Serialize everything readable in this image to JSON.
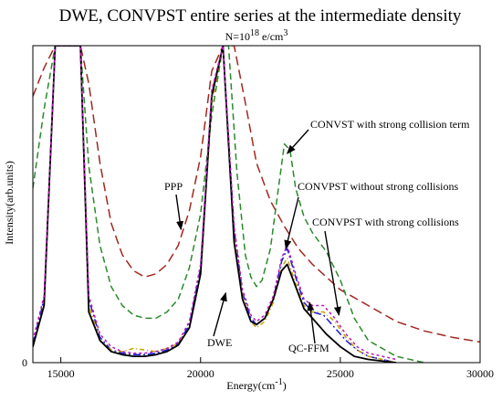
{
  "chart_data": {
    "type": "line",
    "title": "DWE, CONVPST entire series at the intermediate density",
    "subtitle_base": "N=10",
    "subtitle_exp": "18",
    "subtitle_unit": " e/cm",
    "subtitle_unit_exp": "3",
    "xlabel": "Energy(cm",
    "xlabel_exp": "-1",
    "xlabel_close": ")",
    "ylabel": "Intensity(arb.units)",
    "xlim": [
      14000,
      30000
    ],
    "ylim": [
      0,
      1
    ],
    "y_ticks": [
      0
    ],
    "x_ticks": [
      15000,
      20000,
      25000,
      30000
    ],
    "grid": false,
    "legend": "none",
    "series": [
      {
        "name": "PPP",
        "color": "#a0281e",
        "dash": "10,5",
        "x": [
          14000,
          14400,
          14800,
          15000,
          15300,
          15700,
          16000,
          16400,
          16800,
          17200,
          17600,
          18000,
          18400,
          18800,
          19200,
          19600,
          20000,
          20400,
          20800,
          21200,
          21600,
          22000,
          22500,
          23000,
          23500,
          24000,
          25000,
          26000,
          27000,
          28000,
          29000,
          30000
        ],
        "y": [
          0.84,
          0.93,
          1.0,
          1.0,
          1.0,
          1.0,
          0.88,
          0.63,
          0.44,
          0.34,
          0.29,
          0.27,
          0.28,
          0.31,
          0.37,
          0.48,
          0.65,
          0.92,
          1.0,
          1.0,
          0.82,
          0.63,
          0.51,
          0.43,
          0.36,
          0.31,
          0.23,
          0.18,
          0.13,
          0.1,
          0.08,
          0.065
        ]
      },
      {
        "name": "CONVST with strong collision term",
        "color": "#2a8a2a",
        "dash": "7,4",
        "x": [
          14000,
          14400,
          14800,
          15000,
          15300,
          15700,
          16000,
          16400,
          16800,
          17200,
          17600,
          18000,
          18400,
          18800,
          19200,
          19600,
          20000,
          20400,
          20800,
          21000,
          21300,
          21600,
          21800,
          22000,
          22200,
          22500,
          22800,
          23000,
          23200,
          23400,
          23700,
          24000,
          24500,
          25000,
          25500,
          26000,
          27000,
          28000
        ],
        "y": [
          0.55,
          0.8,
          1.0,
          1.0,
          1.0,
          1.0,
          0.62,
          0.37,
          0.24,
          0.18,
          0.15,
          0.14,
          0.14,
          0.16,
          0.2,
          0.3,
          0.47,
          0.78,
          1.0,
          1.0,
          0.6,
          0.34,
          0.27,
          0.24,
          0.26,
          0.36,
          0.56,
          0.69,
          0.67,
          0.55,
          0.46,
          0.41,
          0.35,
          0.26,
          0.14,
          0.07,
          0.02,
          0.0
        ]
      },
      {
        "name": "CONVPST with strong collisions",
        "color": "#1a1ad8",
        "dash": "8,3,2,3",
        "x": [
          14000,
          14400,
          14800,
          15000,
          15300,
          15700,
          16000,
          16400,
          16800,
          17200,
          17600,
          18000,
          18400,
          18800,
          19200,
          19600,
          20000,
          20400,
          20800,
          21200,
          21500,
          21800,
          22000,
          22300,
          22600,
          22900,
          23100,
          23400,
          23700,
          24000,
          24400,
          24800,
          25200,
          25600,
          26000,
          27000
        ],
        "y": [
          0.06,
          0.2,
          1.0,
          1.0,
          1.0,
          1.0,
          0.2,
          0.08,
          0.04,
          0.03,
          0.025,
          0.025,
          0.03,
          0.04,
          0.06,
          0.12,
          0.3,
          0.85,
          1.0,
          0.42,
          0.22,
          0.14,
          0.12,
          0.14,
          0.2,
          0.32,
          0.36,
          0.27,
          0.19,
          0.16,
          0.15,
          0.11,
          0.07,
          0.04,
          0.02,
          0.0
        ]
      },
      {
        "name": "QC-FFM",
        "color": "#c7a000",
        "dash": "5,3,1,3",
        "x": [
          14000,
          14400,
          14800,
          15000,
          15300,
          15700,
          16000,
          16400,
          16800,
          17200,
          17600,
          18000,
          18400,
          18800,
          19200,
          19600,
          20000,
          20400,
          20800,
          21200,
          21500,
          21800,
          22000,
          22300,
          22600,
          22900,
          23100,
          23400,
          23700,
          24000,
          24400,
          24800,
          25200,
          25600,
          26000,
          27000
        ],
        "y": [
          0.05,
          0.18,
          1.0,
          1.0,
          1.0,
          1.0,
          0.18,
          0.07,
          0.04,
          0.035,
          0.045,
          0.04,
          0.035,
          0.045,
          0.06,
          0.11,
          0.28,
          0.82,
          1.0,
          0.4,
          0.21,
          0.13,
          0.11,
          0.13,
          0.19,
          0.3,
          0.33,
          0.25,
          0.18,
          0.16,
          0.16,
          0.13,
          0.08,
          0.04,
          0.02,
          0.0
        ]
      },
      {
        "name": "DWE",
        "color": "#000000",
        "dash": "",
        "x": [
          14000,
          14400,
          14800,
          15000,
          15300,
          15700,
          16000,
          16400,
          16800,
          17200,
          17600,
          18000,
          18400,
          18800,
          19200,
          19600,
          20000,
          20400,
          20800,
          21200,
          21500,
          21800,
          22000,
          22300,
          22600,
          22900,
          23100,
          23400,
          23700,
          24000,
          24500,
          25000,
          25500,
          26000,
          27000
        ],
        "y": [
          0.05,
          0.18,
          1.0,
          1.0,
          1.0,
          1.0,
          0.16,
          0.07,
          0.035,
          0.025,
          0.02,
          0.02,
          0.025,
          0.035,
          0.055,
          0.11,
          0.28,
          0.84,
          1.0,
          0.38,
          0.2,
          0.13,
          0.12,
          0.14,
          0.2,
          0.29,
          0.31,
          0.24,
          0.17,
          0.14,
          0.09,
          0.05,
          0.02,
          0.01,
          0.0
        ]
      },
      {
        "name": "CONVPST without strong collisions",
        "color": "#b51ab5",
        "dash": "3,3",
        "x": [
          14000,
          14400,
          14800,
          15000,
          15300,
          15700,
          16000,
          16400,
          16800,
          17200,
          17600,
          18000,
          18400,
          18800,
          19200,
          19600,
          20000,
          20400,
          20800,
          21200,
          21500,
          21800,
          22000,
          22300,
          22600,
          22900,
          23100,
          23400,
          23700,
          24000,
          24400,
          24800,
          25200,
          25600,
          26000,
          27000
        ],
        "y": [
          0.07,
          0.21,
          1.0,
          1.0,
          1.0,
          1.0,
          0.21,
          0.09,
          0.05,
          0.035,
          0.03,
          0.03,
          0.035,
          0.045,
          0.065,
          0.13,
          0.31,
          0.86,
          1.0,
          0.43,
          0.23,
          0.15,
          0.13,
          0.15,
          0.21,
          0.33,
          0.37,
          0.28,
          0.2,
          0.18,
          0.18,
          0.14,
          0.09,
          0.05,
          0.03,
          0.01
        ]
      }
    ],
    "annotations": [
      {
        "text": "CONVST with strong collision term",
        "x": 23100,
        "y": 0.66
      },
      {
        "text": "PPP",
        "x": 19300,
        "y": 0.42
      },
      {
        "text": "CONVPST without strong collisions",
        "x": 23050,
        "y": 0.36
      },
      {
        "text": "CONVPST with strong collisions",
        "x": 24950,
        "y": 0.15
      },
      {
        "text": "DWE",
        "x": 20900,
        "y": 0.22
      },
      {
        "text": "QC-FFM",
        "x": 23900,
        "y": 0.19
      }
    ]
  }
}
